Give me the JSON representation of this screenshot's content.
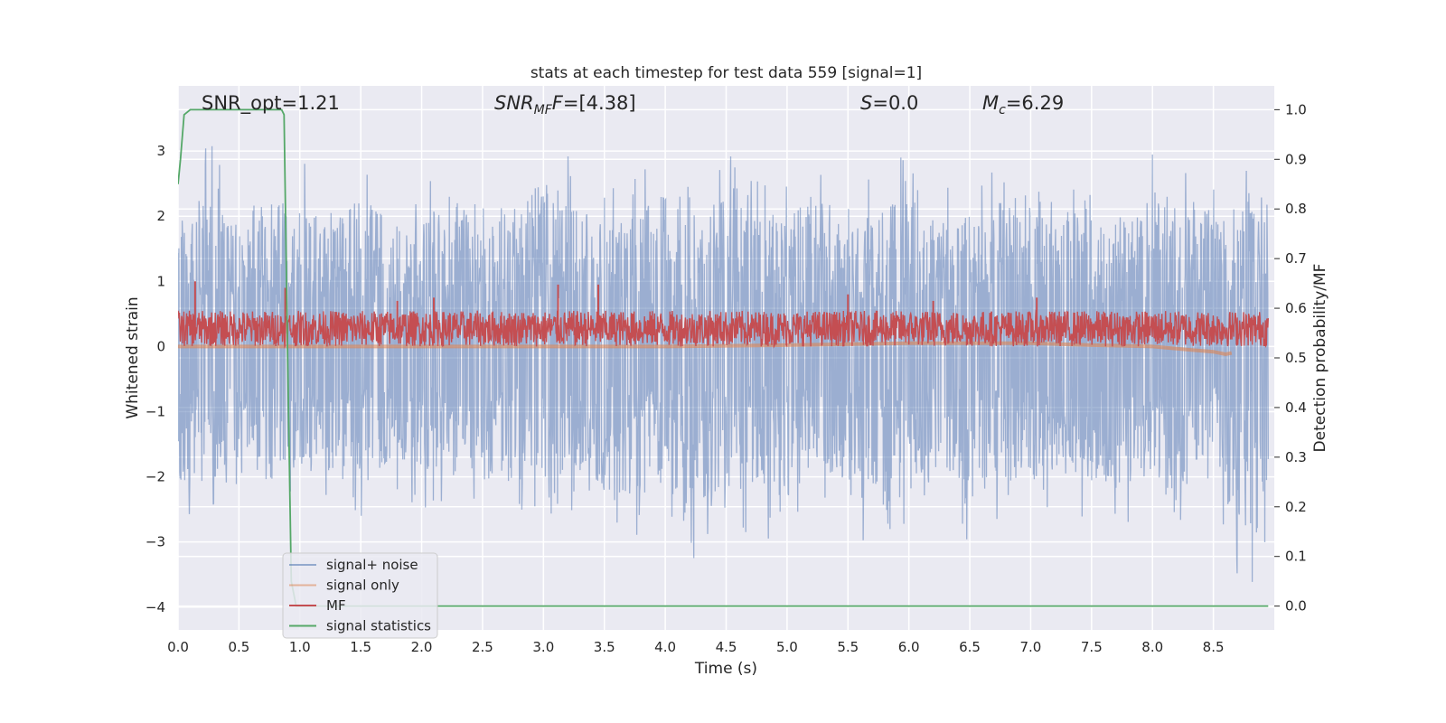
{
  "chart_data": {
    "type": "line",
    "title": "stats at each timestep for test data 559 [signal=1]",
    "xlabel": "Time (s)",
    "ylabel": "Whitened strain",
    "y2label": "Detection probability/MF",
    "xlim": [
      0.0,
      9.0
    ],
    "ylim": [
      -4.35,
      4.0
    ],
    "y2lim": [
      -0.048,
      1.048
    ],
    "xticks": [
      "0.0",
      "0.5",
      "1.0",
      "1.5",
      "2.0",
      "2.5",
      "3.0",
      "3.5",
      "4.0",
      "4.5",
      "5.0",
      "5.5",
      "6.0",
      "6.5",
      "7.0",
      "7.5",
      "8.0",
      "8.5"
    ],
    "yticks": [
      "3",
      "2",
      "1",
      "0",
      "−1",
      "−2",
      "−3",
      "−4"
    ],
    "y2ticks": [
      "1.0",
      "0.9",
      "0.8",
      "0.7",
      "0.6",
      "0.5",
      "0.4",
      "0.3",
      "0.2",
      "0.1",
      "0.0"
    ],
    "grid": true,
    "legend_position": "lower-left",
    "annotations": {
      "snr_opt": "SNR_opt=1.21",
      "snr_mf_main": "SNR",
      "snr_mf_sub": "MF",
      "snr_mf_value": "=[4.38]",
      "s_main": "S",
      "s_value": "=0.0",
      "mc_main": "M",
      "mc_sub": "c",
      "mc_value": "=6.29"
    },
    "series": [
      {
        "name": "signal+ noise",
        "color": "#4c72b0",
        "axis": "left",
        "description_stats": {
          "typical_range": [
            -1.8,
            2.0
          ],
          "max": 3.6,
          "min": -4.0
        },
        "x": [
          0.0,
          0.25,
          0.5,
          0.75,
          1.0,
          1.25,
          1.5,
          1.75,
          2.0,
          2.25,
          2.5,
          2.75,
          3.0,
          3.25,
          3.5,
          3.75,
          4.0,
          4.25,
          4.5,
          4.75,
          5.0,
          5.25,
          5.5,
          5.75,
          6.0,
          6.25,
          6.5,
          6.75,
          7.0,
          7.25,
          7.5,
          7.75,
          8.0,
          8.25,
          8.5,
          8.75,
          9.0
        ],
        "upper": [
          2.4,
          3.2,
          2.2,
          3.0,
          2.9,
          2.4,
          3.2,
          2.6,
          2.5,
          3.1,
          2.3,
          2.7,
          3.5,
          2.9,
          2.4,
          2.6,
          3.2,
          2.2,
          3.0,
          2.7,
          2.5,
          3.2,
          2.3,
          2.8,
          3.0,
          2.4,
          2.6,
          3.0,
          3.1,
          2.5,
          2.9,
          2.6,
          3.0,
          3.1,
          2.6,
          2.9,
          2.4
        ],
        "lower": [
          -2.8,
          -2.9,
          -2.3,
          -2.7,
          -2.4,
          -2.6,
          -2.9,
          -2.2,
          -2.5,
          -2.6,
          -2.4,
          -2.8,
          -2.7,
          -2.5,
          -2.9,
          -3.2,
          -2.6,
          -3.4,
          -2.8,
          -2.9,
          -3.1,
          -2.4,
          -2.7,
          -3.5,
          -2.9,
          -2.5,
          -3.3,
          -2.6,
          -2.8,
          -2.5,
          -2.7,
          -2.8,
          -2.6,
          -2.7,
          -2.4,
          -4.0,
          -2.7
        ]
      },
      {
        "name": "signal only",
        "color": "#dd8452",
        "axis": "left",
        "x": [
          0.0,
          1.0,
          2.0,
          3.0,
          4.0,
          5.0,
          6.0,
          7.0,
          7.5,
          8.0,
          8.3,
          8.5,
          8.6,
          8.65
        ],
        "y": [
          0.0,
          0.0,
          0.0,
          0.0,
          0.0,
          0.02,
          0.05,
          0.05,
          0.02,
          0.0,
          -0.05,
          -0.08,
          -0.12,
          -0.1
        ]
      },
      {
        "name": "MF",
        "color": "#c44e52",
        "axis": "left",
        "band_low": 0.0,
        "band_high": 0.55,
        "peaks": [
          [
            0.14,
            1.0
          ],
          [
            0.88,
            0.9
          ],
          [
            3.12,
            0.95
          ],
          [
            3.45,
            0.95
          ],
          [
            5.5,
            0.8
          ],
          [
            7.05,
            0.75
          ],
          [
            2.1,
            0.75
          ],
          [
            1.8,
            0.7
          ],
          [
            6.2,
            0.7
          ]
        ]
      },
      {
        "name": "signal statistics",
        "color": "#55a868",
        "axis": "right",
        "x": [
          0.0,
          0.02,
          0.05,
          0.1,
          0.2,
          0.5,
          0.85,
          0.87,
          0.9,
          0.93,
          0.97,
          1.5,
          3.0,
          5.0,
          7.0,
          8.5,
          8.95
        ],
        "y": [
          0.85,
          0.9,
          0.99,
          1.0,
          1.0,
          1.0,
          1.0,
          0.99,
          0.5,
          0.05,
          0.0,
          0.0,
          0.0,
          0.0,
          0.0,
          0.0,
          0.0
        ]
      }
    ]
  }
}
